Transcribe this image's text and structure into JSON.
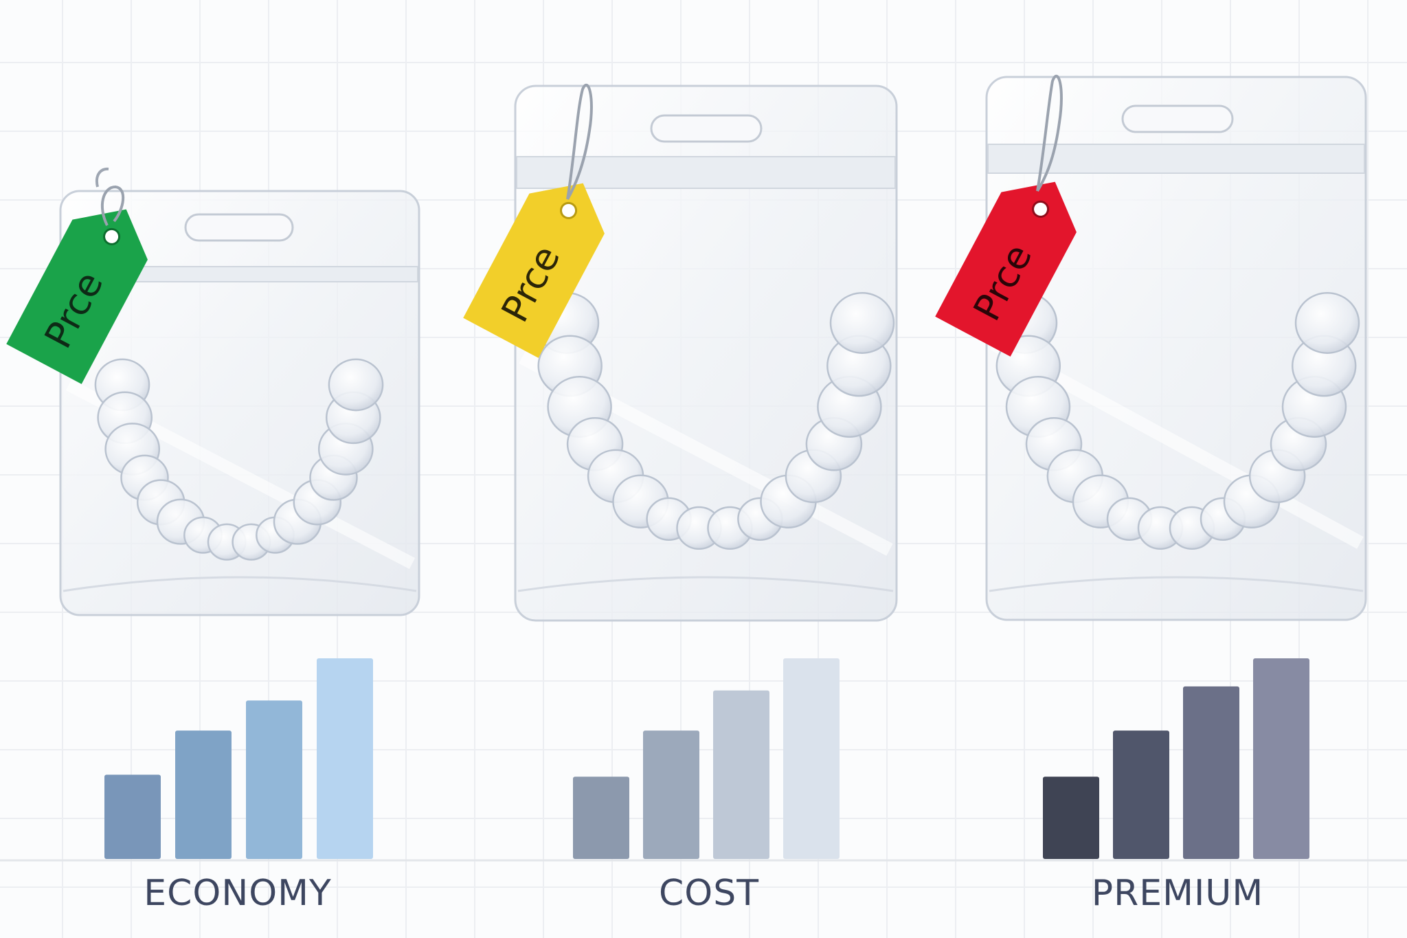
{
  "tiers": [
    {
      "label": "ECONOMY",
      "tag_text": "Prce",
      "tag_color": "#1aa34a",
      "relative_bar_levels": [
        0.42,
        0.64,
        0.79,
        1.0
      ],
      "bar_colors": [
        "#7996b9",
        "#7fa3c6",
        "#92b7d8",
        "#b6d4f0"
      ]
    },
    {
      "label": "COST",
      "tag_text": "Prce",
      "tag_color": "#f2cf2a",
      "relative_bar_levels": [
        0.41,
        0.64,
        0.84,
        1.0
      ],
      "bar_colors": [
        "#8c99ad",
        "#9ca9bb",
        "#bec8d6",
        "#dae2ec"
      ]
    },
    {
      "label": "PREMIUM",
      "tag_text": "Prce",
      "tag_color": "#e3152c",
      "relative_bar_levels": [
        0.41,
        0.64,
        0.86,
        1.0
      ],
      "bar_colors": [
        "#3f4454",
        "#50566b",
        "#6b7088",
        "#878ba3"
      ]
    }
  ]
}
